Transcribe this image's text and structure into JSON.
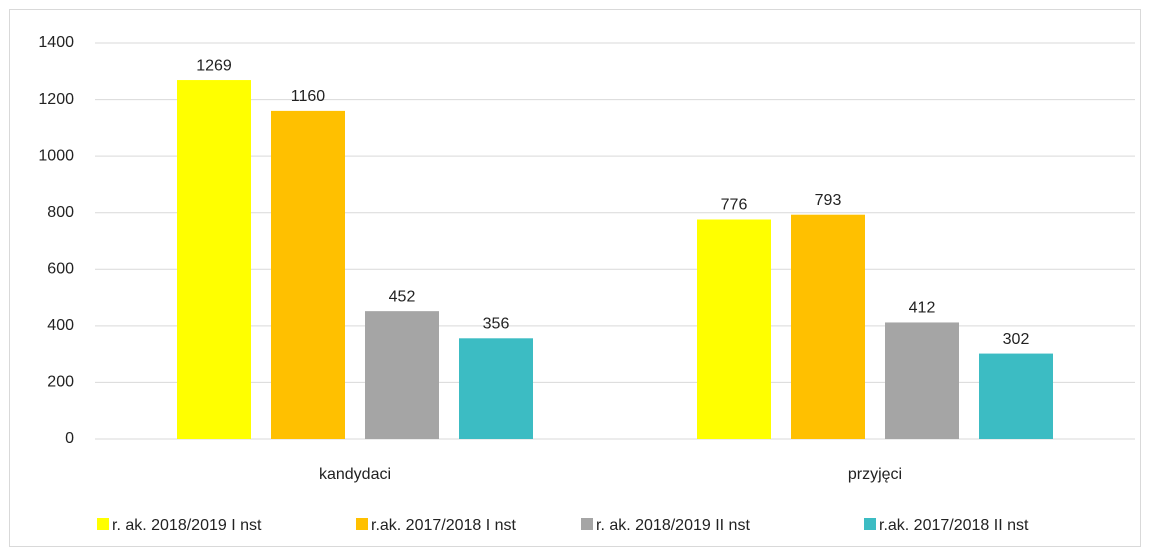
{
  "chart_data": {
    "type": "bar",
    "categories": [
      "kandydaci",
      "przyjęci"
    ],
    "series": [
      {
        "name": "r. ak. 2018/2019 I nst",
        "color": "#FFFF00",
        "values": [
          1269,
          776
        ]
      },
      {
        "name": "r.ak. 2017/2018 I nst",
        "color": "#FFC000",
        "values": [
          1160,
          793
        ]
      },
      {
        "name": "r. ak. 2018/2019 II nst",
        "color": "#A5A5A5",
        "values": [
          452,
          412
        ]
      },
      {
        "name": "r.ak. 2017/2018 II nst",
        "color": "#3CBCC3",
        "values": [
          356,
          302
        ]
      }
    ],
    "ylim": [
      0,
      1400
    ],
    "yticks": [
      0,
      200,
      400,
      600,
      800,
      1000,
      1200,
      1400
    ],
    "grid": true,
    "legend": "bottom"
  }
}
